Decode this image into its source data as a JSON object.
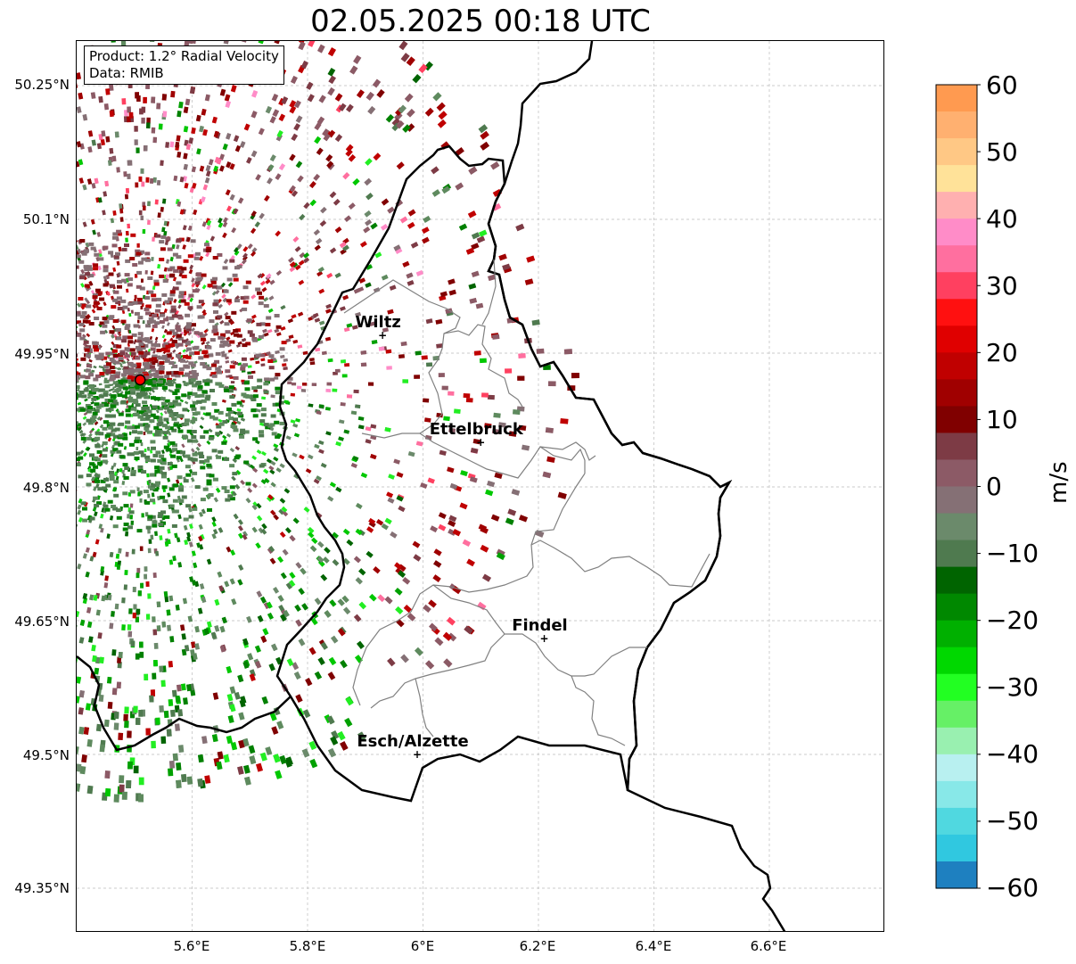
{
  "title": "02.05.2025 00:18 UTC",
  "info_box": {
    "product": "Product: 1.2° Radial Velocity",
    "data": "Data: RMIB"
  },
  "axes": {
    "lon_ticks": [
      "5.6°E",
      "5.8°E",
      "6°E",
      "6.2°E",
      "6.4°E",
      "6.6°E"
    ],
    "lat_ticks": [
      "50.25°N",
      "50.1°N",
      "49.95°N",
      "49.8°N",
      "49.65°N",
      "49.5°N",
      "49.35°N"
    ]
  },
  "cities": [
    {
      "name": "Wiltz",
      "lon": 5.93,
      "lat": 49.97
    },
    {
      "name": "Ettelbruck",
      "lon": 6.1,
      "lat": 49.85
    },
    {
      "name": "Findel",
      "lon": 6.21,
      "lat": 49.63
    },
    {
      "name": "Esch/Alzette",
      "lon": 5.99,
      "lat": 49.5
    }
  ],
  "radar_site": {
    "lon": 5.51,
    "lat": 49.92
  },
  "colorbar": {
    "unit": "m/s",
    "min": -60,
    "max": 60,
    "ticks": [
      "60",
      "50",
      "40",
      "30",
      "20",
      "10",
      "0",
      "−10",
      "−20",
      "−30",
      "−40",
      "−50",
      "−60"
    ],
    "colors": [
      "#ff9a50",
      "#ffb070",
      "#ffc885",
      "#ffe299",
      "#ffb0b0",
      "#ff8cc8",
      "#ff6f9f",
      "#ff4060",
      "#ff1010",
      "#e00000",
      "#c00000",
      "#a00000",
      "#800000",
      "#7d3b45",
      "#8c5a66",
      "#857075",
      "#6b8a6b",
      "#4f7a4f",
      "#006400",
      "#008800",
      "#00b000",
      "#00d800",
      "#22ff22",
      "#66f066",
      "#99f0b0",
      "#b8f0f0",
      "#88e8e8",
      "#50d8e0",
      "#30c8e0",
      "#1e80c0"
    ]
  }
}
